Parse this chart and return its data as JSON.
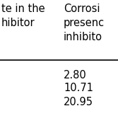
{
  "col1_header_line1": "te in the",
  "col1_header_line2": "hibitor",
  "col2_header_line1": "Corrosi",
  "col2_header_line2": "presenc",
  "col2_header_line3": "inhibito",
  "values": [
    "2.80",
    "10.71",
    "20.95"
  ],
  "background_color": "#ffffff",
  "text_color": "#000000",
  "font_size": 10.5
}
